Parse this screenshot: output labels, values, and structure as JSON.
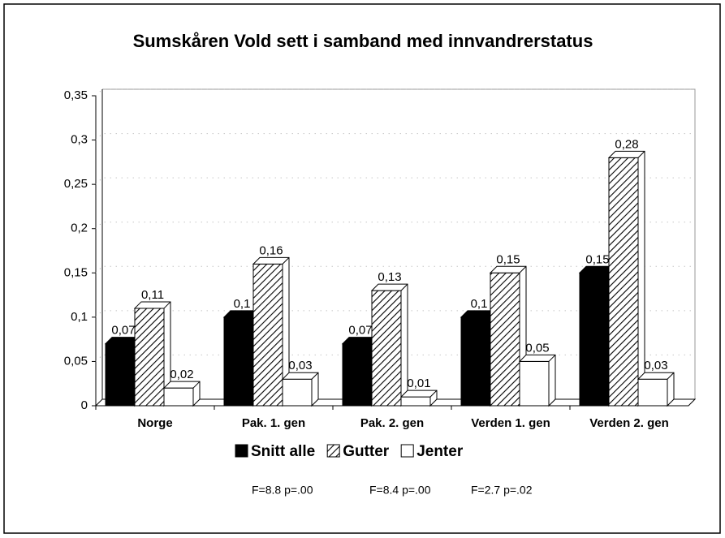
{
  "chart_data": {
    "type": "bar",
    "title": "Sumskåren Vold sett i samband med innvandrerstatus",
    "categories": [
      "Norge",
      "Pak. 1. gen",
      "Pak. 2. gen",
      "Verden 1. gen",
      "Verden 2. gen"
    ],
    "series": [
      {
        "name": "Snitt alle",
        "color": "#000000",
        "values": [
          0.07,
          0.1,
          0.07,
          0.1,
          0.15
        ],
        "value_labels": [
          "0,07",
          "0,1",
          "0,07",
          "0,1",
          "0,15"
        ]
      },
      {
        "name": "Gutter",
        "color": "#000000",
        "hatch": true,
        "values": [
          0.11,
          0.16,
          0.13,
          0.15,
          0.28
        ],
        "value_labels": [
          "0,11",
          "0,16",
          "0,13",
          "0,15",
          "0,28"
        ]
      },
      {
        "name": "Jenter",
        "color": "#ffffff",
        "values": [
          0.02,
          0.03,
          0.01,
          0.05,
          0.03
        ],
        "value_labels": [
          "0,02",
          "0,03",
          "0,01",
          "0,05",
          "0,03"
        ]
      }
    ],
    "ylim": [
      0,
      0.35
    ],
    "yticks": [
      0,
      {
        "value": 0.05,
        "label": "0,05"
      },
      {
        "value": 0.1,
        "label": "0,1"
      },
      {
        "value": 0.15,
        "label": "0,15"
      },
      {
        "value": 0.2,
        "label": "0,2"
      },
      {
        "value": 0.25,
        "label": "0,25"
      },
      {
        "value": 0.3,
        "label": "0,3"
      },
      {
        "value": 0.35,
        "label": "0,35"
      }
    ],
    "grid": true,
    "annotations": [
      "F=8.8 p=.00",
      "F=8.4 p=.00",
      "F=2.7 p=.02"
    ]
  }
}
